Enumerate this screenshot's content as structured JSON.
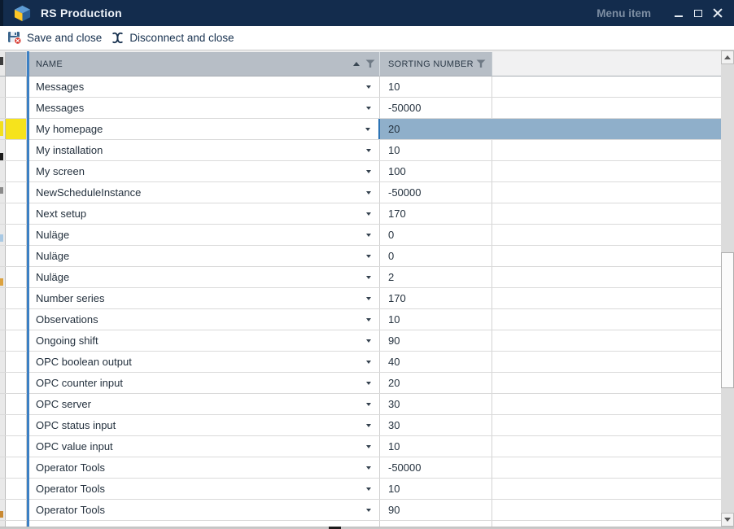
{
  "window": {
    "title": "RS Production",
    "menu_item_label": "Menu item"
  },
  "toolbar": {
    "items": [
      {
        "icon": "save-and-close-icon",
        "label": "Save and close"
      },
      {
        "icon": "disconnect-icon",
        "label": "Disconnect and close"
      }
    ]
  },
  "grid": {
    "columns": [
      {
        "label": "NAME",
        "sorted": "ascending",
        "has_filter": true
      },
      {
        "label": "SORTING NUMBER",
        "sorted": "none",
        "has_filter": true
      },
      {
        "label": "",
        "sorted": "none",
        "has_filter": false
      }
    ],
    "selected_row_index": 2,
    "rows": [
      {
        "name": "Messages",
        "sorting_number": "10"
      },
      {
        "name": "Messages",
        "sorting_number": "-50000"
      },
      {
        "name": "My homepage",
        "sorting_number": "20"
      },
      {
        "name": "My installation",
        "sorting_number": "10"
      },
      {
        "name": "My screen",
        "sorting_number": "100"
      },
      {
        "name": "NewScheduleInstance",
        "sorting_number": "-50000"
      },
      {
        "name": "Next setup",
        "sorting_number": "170"
      },
      {
        "name": "Nuläge",
        "sorting_number": "0"
      },
      {
        "name": "Nuläge",
        "sorting_number": "0"
      },
      {
        "name": "Nuläge",
        "sorting_number": "2"
      },
      {
        "name": "Number series",
        "sorting_number": "170"
      },
      {
        "name": "Observations",
        "sorting_number": "10"
      },
      {
        "name": "Ongoing shift",
        "sorting_number": "90"
      },
      {
        "name": "OPC boolean output",
        "sorting_number": "40"
      },
      {
        "name": "OPC counter input",
        "sorting_number": "20"
      },
      {
        "name": "OPC server",
        "sorting_number": "30"
      },
      {
        "name": "OPC status input",
        "sorting_number": "30"
      },
      {
        "name": "OPC value input",
        "sorting_number": "10"
      },
      {
        "name": "Operator Tools",
        "sorting_number": "-50000"
      },
      {
        "name": "Operator Tools",
        "sorting_number": "10"
      },
      {
        "name": "Operator Tools",
        "sorting_number": "90"
      }
    ]
  },
  "colors": {
    "titlebar_bg": "#132c4d",
    "titlebar_text": "#eef3f9",
    "menu_item_text": "#7c8da2",
    "toolbar_text": "#16304e",
    "header_bg": "#b7bec6",
    "selection_bg": "#8fafca",
    "selected_row_indicator": "#f6e31c",
    "focused_column_line": "#3c80c4",
    "save_badge_red": "#d6352b",
    "logo_top_blue": "#5d9bd3",
    "logo_left_yellow": "#fdc626",
    "logo_right_blue": "#2a5f96"
  }
}
